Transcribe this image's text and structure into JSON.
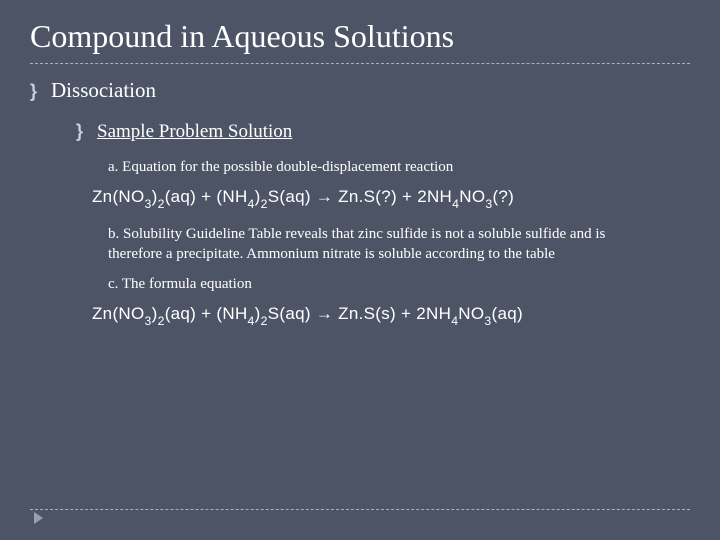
{
  "colors": {
    "background": "#4d5466",
    "text": "#ffffff",
    "divider": "#aab0c0",
    "bullet": "#c9ced9",
    "arrow": "#9aa0b2"
  },
  "title": "Compound in Aqueous Solutions",
  "bullet_mark": "}",
  "level1_text": "Dissociation",
  "level2_text": "Sample Problem Solution",
  "body_a": "a. Equation for the possible double-displacement reaction",
  "body_b": "b. Solubility Guideline Table reveals that zinc sulfide is not a soluble sulfide and is therefore a precipitate. Ammonium nitrate is soluble according to the table",
  "body_c": "c. The formula equation",
  "equations": {
    "eqn1": {
      "lhs_1": "Zn(NO",
      "lhs_1_sub1": "3",
      "lhs_1_paren": ")",
      "lhs_1_sub2": "2",
      "lhs_1_state": "(aq)",
      "plus1": " + ",
      "lhs_2": "(NH",
      "lhs_2_sub1": "4",
      "lhs_2_paren": ")",
      "lhs_2_sub2": "2",
      "lhs_2_tail": "S(aq)",
      "arrow": "  →  ",
      "rhs_1": "Zn.S(?)",
      "plus2": " + ",
      "rhs_2_pre": "2NH",
      "rhs_2_sub1": "4",
      "rhs_2_mid": "NO",
      "rhs_2_sub2": "3",
      "rhs_2_state": "(?)"
    },
    "eqn2": {
      "lhs_1": "Zn(NO",
      "lhs_1_sub1": "3",
      "lhs_1_paren": ")",
      "lhs_1_sub2": "2",
      "lhs_1_state": "(aq)",
      "plus1": " + ",
      "lhs_2": "(NH",
      "lhs_2_sub1": "4",
      "lhs_2_paren": ")",
      "lhs_2_sub2": "2",
      "lhs_2_tail": "S(aq)",
      "arrow": "  →  ",
      "rhs_1": "Zn.S(s)",
      "plus2": " + ",
      "rhs_2_pre": "2NH",
      "rhs_2_sub1": "4",
      "rhs_2_mid": "NO",
      "rhs_2_sub2": "3",
      "rhs_2_state": "(aq)"
    }
  }
}
